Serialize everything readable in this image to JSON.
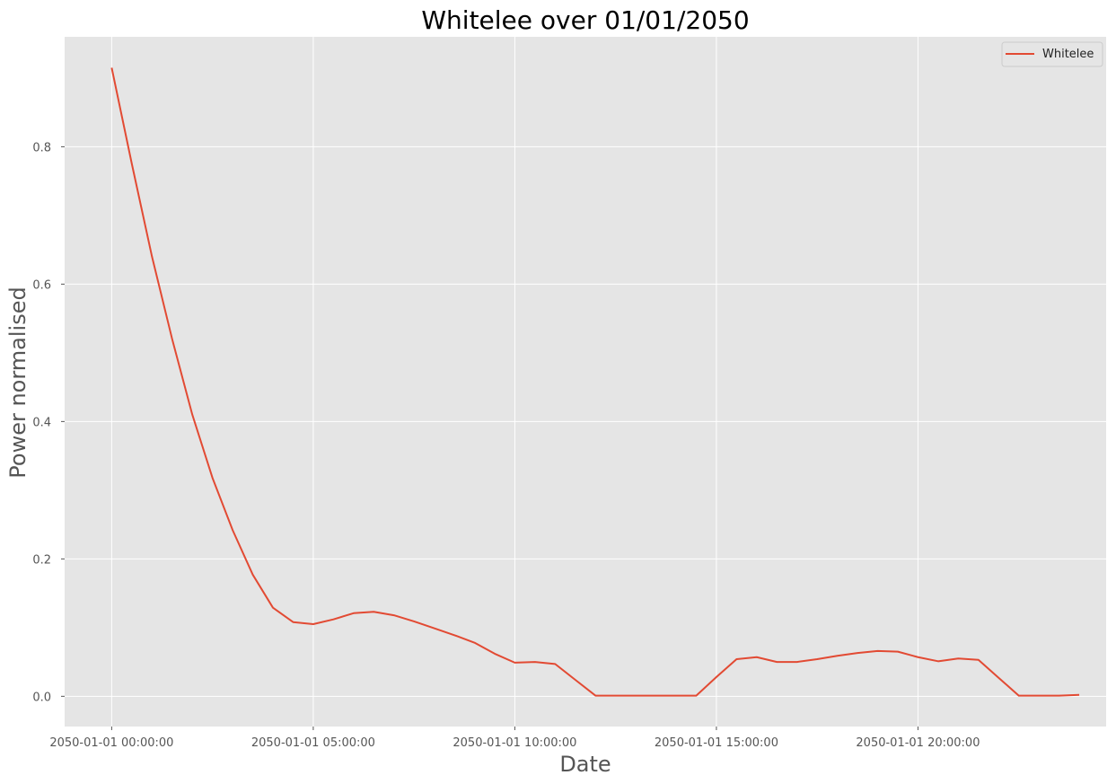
{
  "chart_data": {
    "type": "line",
    "title": "Whitelee over 01/01/2050",
    "xlabel": "Date",
    "ylabel": "Power normalised",
    "x_start": "2050-01-01 00:00:00",
    "x_step_minutes": 30,
    "xlim": [
      "2049-12-31 22:50:00",
      "2050-01-02 00:40:00"
    ],
    "ylim": [
      -0.044,
      0.96
    ],
    "x_ticks": [
      "2050-01-01 00:00:00",
      "2050-01-01 05:00:00",
      "2050-01-01 10:00:00",
      "2050-01-01 15:00:00",
      "2050-01-01 20:00:00"
    ],
    "y_ticks": [
      "0.0",
      "0.2",
      "0.4",
      "0.6",
      "0.8"
    ],
    "y_tick_values": [
      0.0,
      0.2,
      0.4,
      0.6,
      0.8
    ],
    "grid": true,
    "legend": "top-right",
    "series": [
      {
        "name": "Whitelee",
        "color": "#E24A33",
        "values": [
          0.915,
          0.775,
          0.64,
          0.52,
          0.41,
          0.318,
          0.242,
          0.177,
          0.129,
          0.108,
          0.105,
          0.112,
          0.121,
          0.123,
          0.118,
          0.109,
          0.099,
          0.089,
          0.078,
          0.062,
          0.049,
          0.05,
          0.047,
          0.024,
          0.001,
          0.001,
          0.001,
          0.001,
          0.001,
          0.001,
          0.028,
          0.054,
          0.057,
          0.05,
          0.05,
          0.054,
          0.059,
          0.063,
          0.066,
          0.065,
          0.057,
          0.051,
          0.055,
          0.053,
          0.027,
          0.001,
          0.001,
          0.001,
          0.002
        ]
      }
    ]
  },
  "colors": {
    "plot_background": "#E5E5E5",
    "grid": "#FFFFFF",
    "line": "#E24A33"
  }
}
